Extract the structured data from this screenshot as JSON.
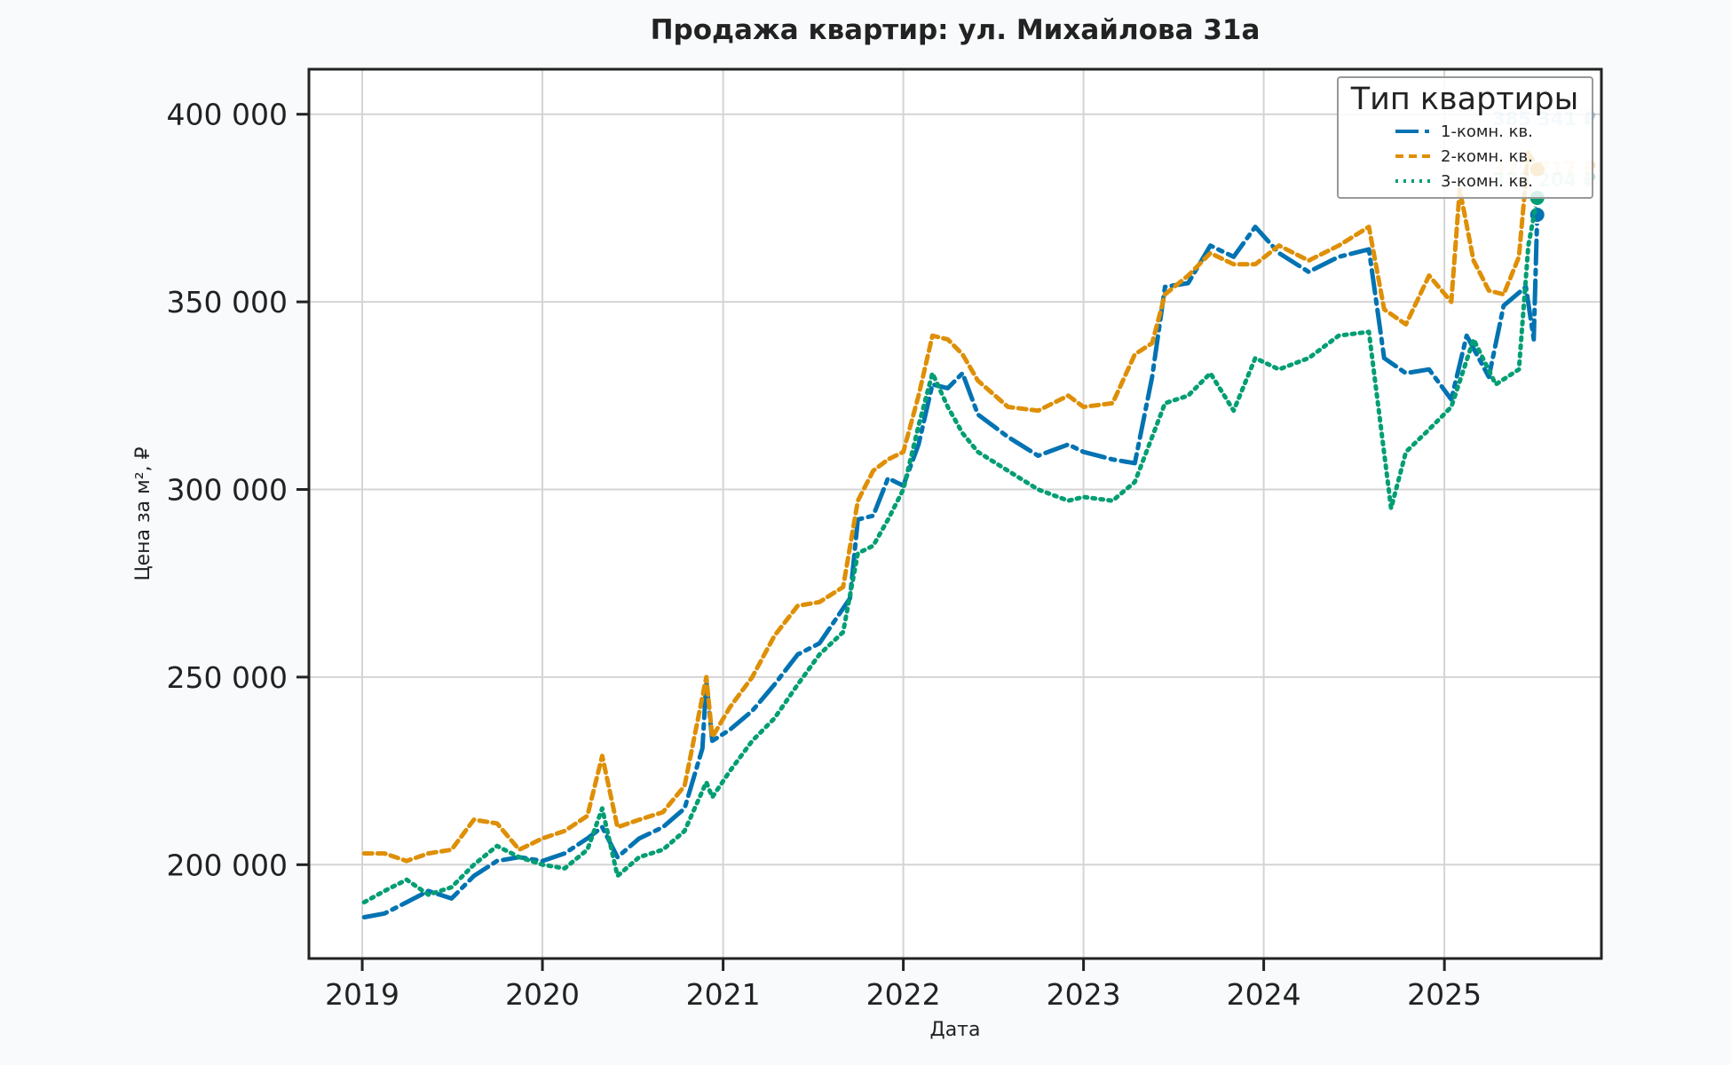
{
  "chart_data": {
    "type": "line",
    "title": "Продажа квартир: ул. Михайлова 31а",
    "xlabel": "Дата",
    "ylabel": "Цена за м², ₽",
    "x_ticks": [
      "2019",
      "2020",
      "2021",
      "2022",
      "2023",
      "2024",
      "2025"
    ],
    "xlim": [
      "2018-09-15",
      "2025-11-15"
    ],
    "y_ticks": [
      200000,
      250000,
      300000,
      350000,
      400000
    ],
    "y_tick_labels": [
      "200 000",
      "250 000",
      "300 000",
      "350 000",
      "400 000"
    ],
    "ylim": [
      175000,
      412000
    ],
    "grid": true,
    "legend": {
      "title": "Тип квартиры",
      "placement": "top-right",
      "entries": [
        "1-комн. кв.",
        "2-комн. кв.",
        "3-комн. кв."
      ]
    },
    "end_labels": [
      "385 341 ₽",
      "377 717 ₽",
      "373 204 ₽"
    ],
    "series": [
      {
        "name": "1-комн. кв.",
        "color": "#0173b2",
        "dash": "dashdot",
        "points": [
          [
            "2019-01-05",
            186000
          ],
          [
            "2019-02-15",
            187000
          ],
          [
            "2019-04-01",
            190000
          ],
          [
            "2019-05-15",
            193000
          ],
          [
            "2019-07-01",
            191000
          ],
          [
            "2019-08-15",
            197000
          ],
          [
            "2019-10-01",
            201000
          ],
          [
            "2019-11-15",
            202000
          ],
          [
            "2020-01-01",
            201000
          ],
          [
            "2020-02-15",
            203000
          ],
          [
            "2020-04-01",
            207000
          ],
          [
            "2020-05-01",
            210000
          ],
          [
            "2020-06-01",
            202000
          ],
          [
            "2020-07-15",
            207000
          ],
          [
            "2020-09-01",
            210000
          ],
          [
            "2020-10-15",
            215000
          ],
          [
            "2020-11-20",
            231000
          ],
          [
            "2020-11-28",
            249000
          ],
          [
            "2020-12-10",
            233000
          ],
          [
            "2021-01-15",
            236000
          ],
          [
            "2021-03-01",
            241000
          ],
          [
            "2021-04-15",
            248000
          ],
          [
            "2021-06-01",
            256000
          ],
          [
            "2021-07-15",
            259000
          ],
          [
            "2021-08-15",
            265000
          ],
          [
            "2021-09-15",
            271000
          ],
          [
            "2021-10-01",
            292000
          ],
          [
            "2021-11-01",
            293000
          ],
          [
            "2021-12-01",
            303000
          ],
          [
            "2022-01-01",
            301000
          ],
          [
            "2022-02-01",
            312000
          ],
          [
            "2022-03-01",
            328000
          ],
          [
            "2022-04-01",
            327000
          ],
          [
            "2022-05-01",
            331000
          ],
          [
            "2022-06-01",
            320000
          ],
          [
            "2022-08-01",
            314000
          ],
          [
            "2022-10-01",
            309000
          ],
          [
            "2022-12-01",
            312000
          ],
          [
            "2023-01-01",
            310000
          ],
          [
            "2023-03-01",
            308000
          ],
          [
            "2023-04-15",
            307000
          ],
          [
            "2023-05-20",
            330000
          ],
          [
            "2023-06-15",
            354000
          ],
          [
            "2023-08-01",
            355000
          ],
          [
            "2023-09-15",
            365000
          ],
          [
            "2023-11-01",
            362000
          ],
          [
            "2023-12-15",
            370000
          ],
          [
            "2024-02-01",
            363000
          ],
          [
            "2024-04-01",
            358000
          ],
          [
            "2024-06-01",
            362000
          ],
          [
            "2024-08-01",
            364000
          ],
          [
            "2024-09-01",
            335000
          ],
          [
            "2024-10-15",
            331000
          ],
          [
            "2024-12-01",
            332000
          ],
          [
            "2025-01-15",
            324000
          ],
          [
            "2025-02-15",
            341000
          ],
          [
            "2025-04-01",
            330000
          ],
          [
            "2025-05-01",
            349000
          ],
          [
            "2025-06-15",
            354000
          ],
          [
            "2025-07-01",
            340000
          ],
          [
            "2025-07-08",
            373204
          ]
        ]
      },
      {
        "name": "2-комн. кв.",
        "color": "#de8f05",
        "dash": "dashed",
        "points": [
          [
            "2019-01-05",
            203000
          ],
          [
            "2019-02-15",
            203000
          ],
          [
            "2019-04-01",
            201000
          ],
          [
            "2019-05-15",
            203000
          ],
          [
            "2019-07-01",
            204000
          ],
          [
            "2019-08-15",
            212000
          ],
          [
            "2019-10-01",
            211000
          ],
          [
            "2019-11-15",
            204000
          ],
          [
            "2020-01-01",
            207000
          ],
          [
            "2020-02-15",
            209000
          ],
          [
            "2020-04-01",
            213000
          ],
          [
            "2020-05-01",
            229000
          ],
          [
            "2020-06-01",
            210000
          ],
          [
            "2020-07-15",
            212000
          ],
          [
            "2020-09-01",
            214000
          ],
          [
            "2020-10-15",
            221000
          ],
          [
            "2020-11-28",
            250000
          ],
          [
            "2020-12-10",
            234000
          ],
          [
            "2021-01-15",
            242000
          ],
          [
            "2021-03-01",
            250000
          ],
          [
            "2021-04-15",
            261000
          ],
          [
            "2021-06-01",
            269000
          ],
          [
            "2021-07-15",
            270000
          ],
          [
            "2021-09-01",
            274000
          ],
          [
            "2021-10-01",
            297000
          ],
          [
            "2021-11-01",
            305000
          ],
          [
            "2021-12-01",
            308000
          ],
          [
            "2022-01-01",
            310000
          ],
          [
            "2022-02-01",
            325000
          ],
          [
            "2022-03-01",
            341000
          ],
          [
            "2022-04-01",
            340000
          ],
          [
            "2022-05-01",
            336000
          ],
          [
            "2022-06-01",
            329000
          ],
          [
            "2022-08-01",
            322000
          ],
          [
            "2022-10-01",
            321000
          ],
          [
            "2022-12-01",
            325000
          ],
          [
            "2023-01-01",
            322000
          ],
          [
            "2023-03-01",
            323000
          ],
          [
            "2023-04-15",
            336000
          ],
          [
            "2023-05-20",
            339000
          ],
          [
            "2023-06-15",
            352000
          ],
          [
            "2023-08-01",
            357000
          ],
          [
            "2023-09-15",
            363000
          ],
          [
            "2023-11-01",
            360000
          ],
          [
            "2023-12-15",
            360000
          ],
          [
            "2024-02-01",
            365000
          ],
          [
            "2024-04-01",
            361000
          ],
          [
            "2024-06-01",
            365000
          ],
          [
            "2024-08-01",
            370000
          ],
          [
            "2024-09-01",
            348000
          ],
          [
            "2024-10-15",
            344000
          ],
          [
            "2024-12-01",
            357000
          ],
          [
            "2025-01-15",
            350000
          ],
          [
            "2025-02-01",
            380000
          ],
          [
            "2025-03-01",
            361000
          ],
          [
            "2025-04-01",
            353000
          ],
          [
            "2025-05-01",
            352000
          ],
          [
            "2025-06-01",
            362000
          ],
          [
            "2025-06-20",
            390000
          ],
          [
            "2025-07-08",
            385341
          ]
        ]
      },
      {
        "name": "3-комн. кв.",
        "color": "#029e73",
        "dash": "dotted",
        "points": [
          [
            "2019-01-05",
            190000
          ],
          [
            "2019-02-15",
            193000
          ],
          [
            "2019-04-01",
            196000
          ],
          [
            "2019-05-15",
            192000
          ],
          [
            "2019-07-01",
            194000
          ],
          [
            "2019-08-15",
            200000
          ],
          [
            "2019-10-01",
            205000
          ],
          [
            "2019-11-15",
            202000
          ],
          [
            "2020-01-01",
            200000
          ],
          [
            "2020-02-15",
            199000
          ],
          [
            "2020-04-01",
            204000
          ],
          [
            "2020-05-01",
            215000
          ],
          [
            "2020-06-01",
            197000
          ],
          [
            "2020-07-15",
            202000
          ],
          [
            "2020-09-01",
            204000
          ],
          [
            "2020-10-15",
            209000
          ],
          [
            "2020-11-28",
            222000
          ],
          [
            "2020-12-10",
            218000
          ],
          [
            "2021-01-15",
            225000
          ],
          [
            "2021-03-01",
            233000
          ],
          [
            "2021-04-15",
            239000
          ],
          [
            "2021-06-01",
            248000
          ],
          [
            "2021-07-15",
            256000
          ],
          [
            "2021-09-01",
            262000
          ],
          [
            "2021-10-01",
            283000
          ],
          [
            "2021-11-01",
            285000
          ],
          [
            "2021-12-01",
            292000
          ],
          [
            "2022-01-01",
            300000
          ],
          [
            "2022-02-01",
            317000
          ],
          [
            "2022-03-01",
            331000
          ],
          [
            "2022-04-01",
            322000
          ],
          [
            "2022-05-01",
            315000
          ],
          [
            "2022-06-01",
            310000
          ],
          [
            "2022-08-01",
            305000
          ],
          [
            "2022-10-01",
            300000
          ],
          [
            "2022-12-01",
            297000
          ],
          [
            "2023-01-01",
            298000
          ],
          [
            "2023-03-01",
            297000
          ],
          [
            "2023-04-15",
            302000
          ],
          [
            "2023-05-20",
            314000
          ],
          [
            "2023-06-15",
            323000
          ],
          [
            "2023-08-01",
            325000
          ],
          [
            "2023-09-15",
            331000
          ],
          [
            "2023-11-01",
            321000
          ],
          [
            "2023-12-15",
            335000
          ],
          [
            "2024-02-01",
            332000
          ],
          [
            "2024-04-01",
            335000
          ],
          [
            "2024-06-01",
            341000
          ],
          [
            "2024-08-01",
            342000
          ],
          [
            "2024-09-15",
            295000
          ],
          [
            "2024-10-15",
            310000
          ],
          [
            "2024-12-01",
            316000
          ],
          [
            "2025-01-15",
            322000
          ],
          [
            "2025-03-01",
            340000
          ],
          [
            "2025-04-15",
            328000
          ],
          [
            "2025-06-01",
            332000
          ],
          [
            "2025-06-20",
            365000
          ],
          [
            "2025-07-08",
            377717
          ]
        ]
      }
    ]
  }
}
